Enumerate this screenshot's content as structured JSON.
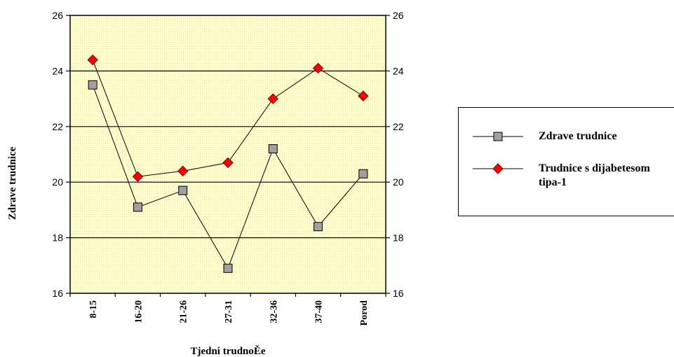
{
  "chart_data": {
    "type": "line",
    "title": "",
    "xlabel": "Tjedni trudnoĚe",
    "ylabel": "Zdrave trudnice",
    "categories": [
      "8-15",
      "16-20",
      "21-26",
      "27-31",
      "32-36",
      "37-40",
      "Porod"
    ],
    "ylim": [
      16,
      26
    ],
    "yticks": [
      16,
      18,
      20,
      22,
      24,
      26
    ],
    "grid": true,
    "legend_position": "right",
    "plot_background": "#FFFFCC",
    "series": [
      {
        "name": "Zdrave trudnice",
        "values": [
          23.5,
          19.1,
          19.7,
          16.9,
          21.2,
          18.4,
          20.3
        ],
        "marker": "square",
        "color": "#A0A0A0"
      },
      {
        "name": "Trudnice s dijabetesom tipa-1",
        "values": [
          24.4,
          20.2,
          20.4,
          20.7,
          23.0,
          24.1,
          23.1
        ],
        "marker": "diamond",
        "color": "#FF0000"
      }
    ]
  },
  "legend": {
    "items": [
      {
        "label": "Zdrave trudnice",
        "marker": "square"
      },
      {
        "label": "Trudnice s dijabetesom tipa-1",
        "marker": "diamond"
      }
    ]
  }
}
